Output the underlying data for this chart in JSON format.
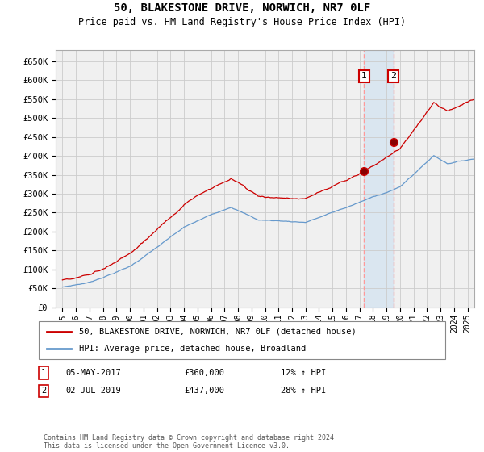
{
  "title": "50, BLAKESTONE DRIVE, NORWICH, NR7 0LF",
  "subtitle": "Price paid vs. HM Land Registry's House Price Index (HPI)",
  "ylim": [
    0,
    680000
  ],
  "yticks": [
    0,
    50000,
    100000,
    150000,
    200000,
    250000,
    300000,
    350000,
    400000,
    450000,
    500000,
    550000,
    600000,
    650000
  ],
  "ytick_labels": [
    "£0",
    "£50K",
    "£100K",
    "£150K",
    "£200K",
    "£250K",
    "£300K",
    "£350K",
    "£400K",
    "£450K",
    "£500K",
    "£550K",
    "£600K",
    "£650K"
  ],
  "xlim_start": 1994.5,
  "xlim_end": 2025.5,
  "transaction1_x": 2017.34,
  "transaction1_y": 360000,
  "transaction2_x": 2019.5,
  "transaction2_y": 437000,
  "line1_label": "50, BLAKESTONE DRIVE, NORWICH, NR7 0LF (detached house)",
  "line2_label": "HPI: Average price, detached house, Broadland",
  "line1_color": "#cc0000",
  "line2_color": "#6699cc",
  "grid_color": "#cccccc",
  "background_color": "#ffffff",
  "plot_bg_color": "#f0f0f0",
  "marker_box_color": "#cc0000",
  "vline_color": "#ff9999",
  "shade_color": "#cce0f0",
  "transaction1_date": "05-MAY-2017",
  "transaction1_price": "£360,000",
  "transaction1_hpi": "12% ↑ HPI",
  "transaction2_date": "02-JUL-2019",
  "transaction2_price": "£437,000",
  "transaction2_hpi": "28% ↑ HPI",
  "footnote": "Contains HM Land Registry data © Crown copyright and database right 2024.\nThis data is licensed under the Open Government Licence v3.0."
}
